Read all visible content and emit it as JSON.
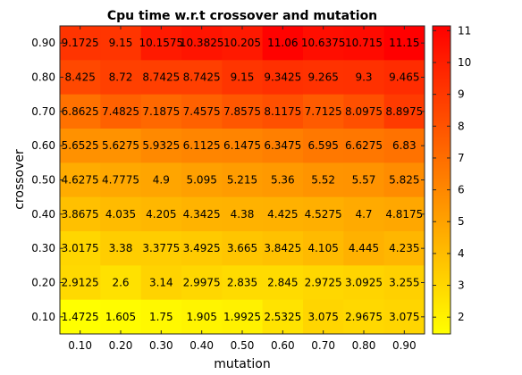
{
  "chart_data": {
    "type": "heatmap",
    "title": "Cpu time w.r.t crossover and mutation",
    "xlabel": "mutation",
    "ylabel": "crossover",
    "x_categories": [
      "0.10",
      "0.20",
      "0.30",
      "0.40",
      "0.50",
      "0.60",
      "0.70",
      "0.80",
      "0.90"
    ],
    "y_categories": [
      "0.90",
      "0.80",
      "0.70",
      "0.60",
      "0.50",
      "0.40",
      "0.30",
      "0.20",
      "0.10"
    ],
    "values": [
      [
        9.1725,
        9.15,
        10.1575,
        10.3825,
        10.205,
        11.06,
        10.6375,
        10.715,
        11.15
      ],
      [
        8.425,
        8.72,
        8.7425,
        8.7425,
        9.15,
        9.3425,
        9.265,
        9.3,
        9.465
      ],
      [
        6.8625,
        7.4825,
        7.1875,
        7.4575,
        7.8575,
        8.1175,
        7.7125,
        8.0975,
        8.8975
      ],
      [
        5.6525,
        5.6275,
        5.9325,
        6.1125,
        6.1475,
        6.3475,
        6.595,
        6.6275,
        6.83
      ],
      [
        4.6275,
        4.7775,
        4.9,
        5.095,
        5.215,
        5.36,
        5.52,
        5.57,
        5.825
      ],
      [
        3.8675,
        4.035,
        4.205,
        4.3425,
        4.38,
        4.425,
        4.5275,
        4.7,
        4.8175
      ],
      [
        3.0175,
        3.38,
        3.3775,
        3.4925,
        3.665,
        3.8425,
        4.105,
        4.445,
        4.235
      ],
      [
        2.9125,
        2.6,
        3.14,
        2.9975,
        2.835,
        2.845,
        2.9725,
        3.0925,
        3.255
      ],
      [
        1.4725,
        1.605,
        1.75,
        1.905,
        1.9925,
        2.5325,
        3.075,
        2.9675,
        3.075
      ]
    ],
    "cell_labels": [
      [
        "9.1725",
        "9.15",
        "10.1575",
        "10.3825",
        "10.205",
        "11.06",
        "10.6375",
        "10.715",
        "11.15"
      ],
      [
        "8.425",
        "8.72",
        "8.7425",
        "8.7425",
        "9.15",
        "9.3425",
        "9.265",
        "9.3",
        "9.465"
      ],
      [
        "6.8625",
        "7.4825",
        "7.1875",
        "7.4575",
        "7.8575",
        "8.1175",
        "7.7125",
        "8.0975",
        "8.8975"
      ],
      [
        "5.6525",
        "5.6275",
        "5.9325",
        "6.1125",
        "6.1475",
        "6.3475",
        "6.595",
        "6.6275",
        "6.83"
      ],
      [
        "4.6275",
        "4.7775",
        "4.9",
        "5.095",
        "5.215",
        "5.36",
        "5.52",
        "5.57",
        "5.825"
      ],
      [
        "3.8675",
        "4.035",
        "4.205",
        "4.3425",
        "4.38",
        "4.425",
        "4.5275",
        "4.7",
        "4.8175"
      ],
      [
        "3.0175",
        "3.38",
        "3.3775",
        "3.4925",
        "3.665",
        "3.8425",
        "4.105",
        "4.445",
        "4.235"
      ],
      [
        "2.9125",
        "2.6",
        "3.14",
        "2.9975",
        "2.835",
        "2.845",
        "2.9725",
        "3.0925",
        "3.255"
      ],
      [
        "1.4725",
        "1.605",
        "1.75",
        "1.905",
        "1.9925",
        "2.5325",
        "3.075",
        "2.9675",
        "3.075"
      ]
    ],
    "colorbar": {
      "range": [
        1.4725,
        11.15
      ],
      "ticks": [
        2,
        3,
        4,
        5,
        6,
        7,
        8,
        9,
        10,
        11
      ],
      "tick_labels": [
        "2",
        "3",
        "4",
        "5",
        "6",
        "7",
        "8",
        "9",
        "10",
        "11"
      ],
      "colormap": "autumn (red high, yellow low)",
      "low_color": "#ffff00",
      "high_color": "#ff0000"
    },
    "grid": false
  }
}
